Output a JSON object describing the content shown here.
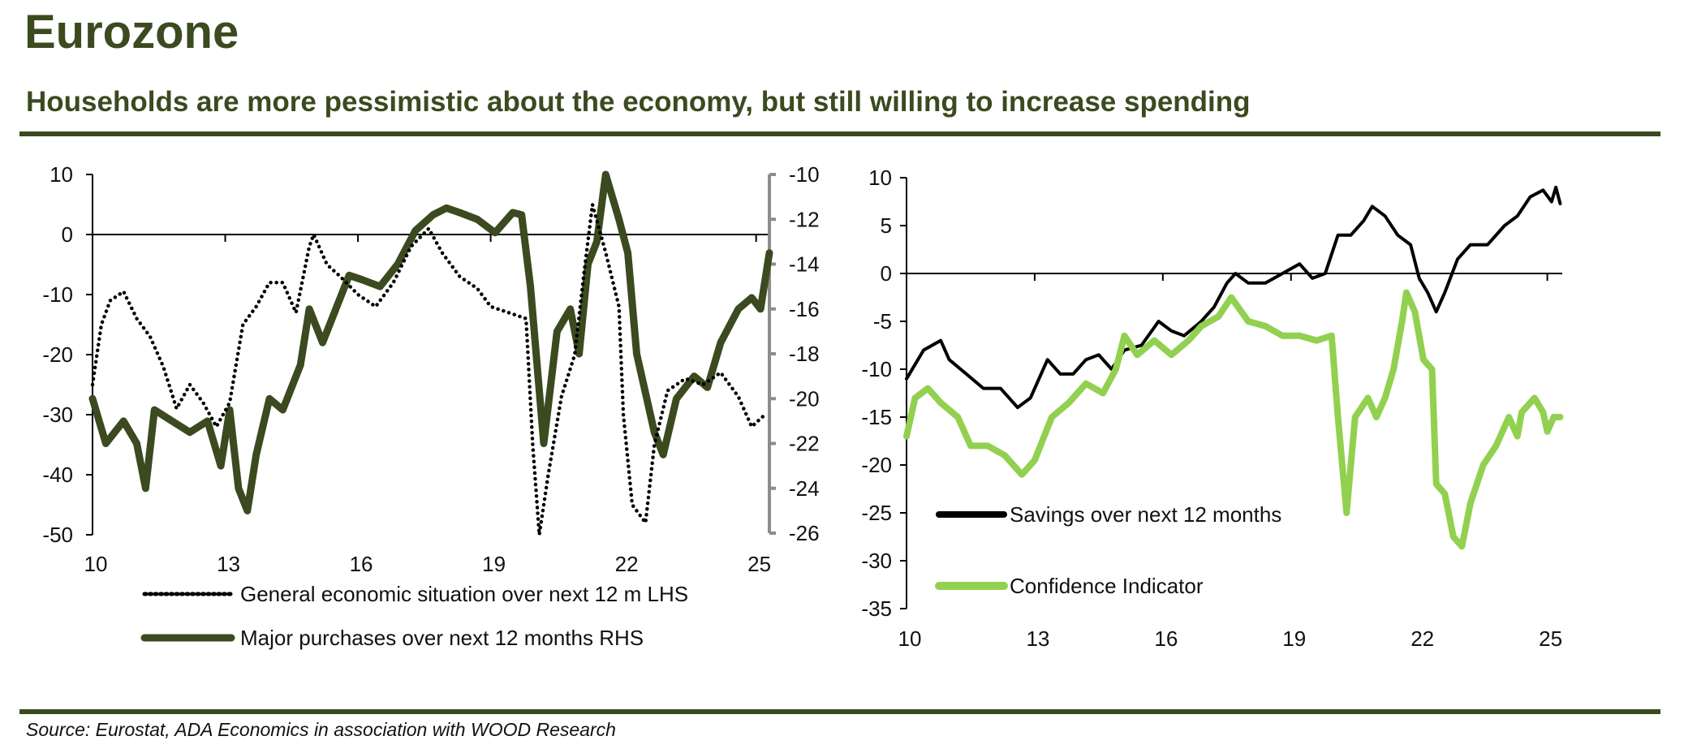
{
  "header": {
    "title": "Eurozone",
    "subtitle": "Households are more pessimistic about the economy, but still willing to increase spending"
  },
  "footer": {
    "source": "Source: Eurostat, ADA Economics in association with WOOD Research"
  },
  "colors": {
    "brand": "#3b4a1f",
    "general_economic": "#000000",
    "major_purchases": "#3b4a1f",
    "savings": "#000000",
    "confidence": "#92d050",
    "rhs_axis": "#8c8c8c"
  },
  "chart_data": [
    {
      "type": "line",
      "title": "",
      "xlabel": "",
      "ylabel": "",
      "x_tick_labels": [
        "10",
        "13",
        "16",
        "19",
        "22",
        "25"
      ],
      "x_ticks": [
        2010,
        2013,
        2016,
        2019,
        2022,
        2025
      ],
      "xlim": [
        2010,
        2025.3
      ],
      "ylim": [
        -50,
        10
      ],
      "y_ticks": [
        10,
        0,
        -10,
        -20,
        -30,
        -40,
        -50
      ],
      "y_tick_labels": [
        "10",
        "0",
        "-10",
        "-20",
        "-30",
        "-40",
        "-50"
      ],
      "y2lim": [
        -26,
        -10
      ],
      "y2_ticks": [
        -10,
        -12,
        -14,
        -16,
        -18,
        -20,
        -22,
        -24,
        -26
      ],
      "y2_tick_labels": [
        "-10",
        "-12",
        "-14",
        "-16",
        "-18",
        "-20",
        "-22",
        "-24",
        "-26"
      ],
      "grid": false,
      "legend_position": "bottom",
      "series": [
        {
          "name": "General economic situation over next 12 m LHS",
          "axis": "left",
          "style": "dotted",
          "x": [
            2010.0,
            2010.2,
            2010.4,
            2010.7,
            2011.0,
            2011.3,
            2011.6,
            2011.9,
            2012.2,
            2012.5,
            2012.8,
            2013.1,
            2013.4,
            2013.7,
            2014.0,
            2014.3,
            2014.6,
            2014.9,
            2015.0,
            2015.3,
            2015.6,
            2016.0,
            2016.4,
            2016.8,
            2017.2,
            2017.6,
            2017.9,
            2018.3,
            2018.7,
            2019.0,
            2019.4,
            2019.8,
            2019.95,
            2020.1,
            2020.3,
            2020.6,
            2020.9,
            2021.1,
            2021.3,
            2021.6,
            2021.9,
            2022.0,
            2022.2,
            2022.5,
            2022.7,
            2023.0,
            2023.4,
            2023.8,
            2024.2,
            2024.6,
            2024.9,
            2025.2
          ],
          "values": [
            -25,
            -15,
            -11,
            -9.5,
            -14,
            -17,
            -22,
            -29,
            -25,
            -28,
            -32,
            -28,
            -15,
            -12,
            -8,
            -8,
            -13,
            -2,
            0,
            -5,
            -7,
            -10,
            -12,
            -8,
            -2,
            1,
            -3,
            -7,
            -9,
            -12,
            -13,
            -14,
            -35,
            -50,
            -40,
            -27,
            -20,
            -7,
            5,
            -3,
            -12,
            -30,
            -45,
            -48,
            -35,
            -26,
            -24,
            -25,
            -23,
            -27,
            -32,
            -30
          ]
        },
        {
          "name": "Major purchases over next 12 months RHS",
          "axis": "right",
          "style": "solid-thick",
          "x": [
            2010.0,
            2010.3,
            2010.7,
            2011.0,
            2011.2,
            2011.4,
            2011.8,
            2012.2,
            2012.6,
            2012.9,
            2013.1,
            2013.3,
            2013.5,
            2013.7,
            2014.0,
            2014.3,
            2014.7,
            2014.9,
            2015.2,
            2015.5,
            2015.8,
            2016.1,
            2016.5,
            2016.9,
            2017.3,
            2017.7,
            2018.0,
            2018.3,
            2018.7,
            2019.1,
            2019.5,
            2019.7,
            2019.9,
            2020.2,
            2020.5,
            2020.8,
            2021.0,
            2021.2,
            2021.4,
            2021.6,
            2021.9,
            2022.1,
            2022.3,
            2022.7,
            2022.9,
            2023.2,
            2023.6,
            2023.9,
            2024.2,
            2024.6,
            2024.9,
            2025.1,
            2025.3
          ],
          "values": [
            -20,
            -22,
            -21,
            -22,
            -24,
            -20.5,
            -21,
            -21.5,
            -21,
            -23,
            -20.5,
            -24,
            -25,
            -22.5,
            -20,
            -20.5,
            -18.5,
            -16,
            -17.5,
            -16,
            -14.5,
            -14.7,
            -15,
            -14,
            -12.5,
            -11.8,
            -11.5,
            -11.7,
            -12,
            -12.6,
            -11.7,
            -11.8,
            -15,
            -22,
            -17,
            -16,
            -18,
            -14,
            -13,
            -10,
            -12,
            -13.5,
            -18,
            -21.5,
            -22.5,
            -20,
            -19,
            -19.5,
            -17.5,
            -16,
            -15.5,
            -16,
            -13.5
          ]
        }
      ]
    },
    {
      "type": "line",
      "title": "",
      "xlabel": "",
      "ylabel": "",
      "x_tick_labels": [
        "10",
        "13",
        "16",
        "19",
        "22",
        "25"
      ],
      "x_ticks": [
        2010,
        2013,
        2016,
        2019,
        2022,
        2025
      ],
      "xlim": [
        2010,
        2025.35
      ],
      "ylim": [
        -35,
        10
      ],
      "y_ticks": [
        10,
        5,
        0,
        -5,
        -10,
        -15,
        -20,
        -25,
        -30,
        -35
      ],
      "y_tick_labels": [
        "10",
        "5",
        "0",
        "-5",
        "-10",
        "-15",
        "-20",
        "-25",
        "-30",
        "-35"
      ],
      "grid": false,
      "legend_position": "bottom-left",
      "series": [
        {
          "name": "Savings over next 12 months",
          "style": "solid",
          "x": [
            2010.0,
            2010.4,
            2010.8,
            2011.0,
            2011.4,
            2011.8,
            2012.2,
            2012.6,
            2012.9,
            2013.1,
            2013.3,
            2013.6,
            2013.9,
            2014.2,
            2014.5,
            2014.8,
            2015.1,
            2015.5,
            2015.9,
            2016.2,
            2016.5,
            2016.9,
            2017.2,
            2017.5,
            2017.7,
            2018.0,
            2018.4,
            2018.8,
            2019.2,
            2019.5,
            2019.8,
            2020.1,
            2020.4,
            2020.7,
            2020.9,
            2021.2,
            2021.5,
            2021.8,
            2022.0,
            2022.2,
            2022.4,
            2022.6,
            2022.9,
            2023.2,
            2023.6,
            2024.0,
            2024.3,
            2024.6,
            2024.9,
            2025.1,
            2025.2,
            2025.3
          ],
          "values": [
            -11,
            -8,
            -7,
            -9,
            -10.5,
            -12,
            -12,
            -14,
            -13,
            -11,
            -9,
            -10.5,
            -10.5,
            -9,
            -8.5,
            -10,
            -8,
            -7.5,
            -5,
            -6,
            -6.5,
            -5,
            -3.5,
            -1,
            0,
            -1,
            -1,
            0,
            1,
            -0.5,
            0,
            4,
            4,
            5.5,
            7,
            6,
            4,
            3,
            -0.5,
            -2,
            -4,
            -2,
            1.5,
            3,
            3,
            5,
            6,
            8,
            8.7,
            7.5,
            9,
            7.3
          ]
        },
        {
          "name": "Confidence Indicator",
          "style": "solid-thick",
          "x": [
            2010.0,
            2010.2,
            2010.5,
            2010.8,
            2011.2,
            2011.5,
            2011.9,
            2012.3,
            2012.7,
            2013.0,
            2013.4,
            2013.8,
            2014.2,
            2014.6,
            2014.9,
            2015.1,
            2015.4,
            2015.8,
            2016.2,
            2016.6,
            2016.9,
            2017.3,
            2017.6,
            2018.0,
            2018.4,
            2018.8,
            2019.2,
            2019.6,
            2019.95,
            2020.1,
            2020.3,
            2020.5,
            2020.8,
            2021.0,
            2021.2,
            2021.4,
            2021.6,
            2021.7,
            2021.9,
            2022.1,
            2022.3,
            2022.4,
            2022.6,
            2022.8,
            2023.0,
            2023.2,
            2023.5,
            2023.8,
            2024.1,
            2024.3,
            2024.4,
            2024.7,
            2024.9,
            2025.0,
            2025.15,
            2025.3
          ],
          "values": [
            -17,
            -13,
            -12,
            -13.5,
            -15,
            -18,
            -18,
            -19,
            -21,
            -19.5,
            -15,
            -13.5,
            -11.5,
            -12.5,
            -10,
            -6.5,
            -8.5,
            -7,
            -8.5,
            -7,
            -5.5,
            -4.5,
            -2.5,
            -5,
            -5.5,
            -6.5,
            -6.5,
            -7,
            -6.5,
            -15,
            -25,
            -15,
            -13,
            -15,
            -13,
            -10,
            -5,
            -2,
            -4,
            -9,
            -10,
            -22,
            -23,
            -27.5,
            -28.5,
            -24,
            -20,
            -18,
            -15,
            -17,
            -14.5,
            -13,
            -14.5,
            -16.5,
            -15,
            -15
          ]
        }
      ]
    }
  ]
}
